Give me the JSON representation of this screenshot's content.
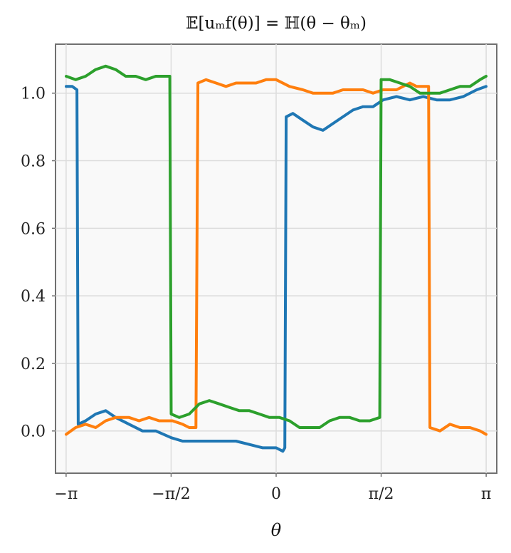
{
  "chart_data": {
    "type": "line",
    "title": "𝔼[uₘf(θ)] = ℍ(θ − θₘ)",
    "xlabel": "θ",
    "ylabel": "",
    "xlim": [
      -3.3,
      3.3
    ],
    "ylim": [
      -0.125,
      1.145
    ],
    "grid": true,
    "legend": "none",
    "x_ticks": [
      {
        "value": -3.14159,
        "label": "−π"
      },
      {
        "value": -1.5708,
        "label": "−π/2"
      },
      {
        "value": 0,
        "label": "0"
      },
      {
        "value": 1.5708,
        "label": "π/2"
      },
      {
        "value": 3.14159,
        "label": "π"
      }
    ],
    "y_ticks": [
      {
        "value": 0.0,
        "label": "0.0"
      },
      {
        "value": 0.2,
        "label": "0.2"
      },
      {
        "value": 0.4,
        "label": "0.4"
      },
      {
        "value": 0.6,
        "label": "0.6"
      },
      {
        "value": 0.8,
        "label": "0.8"
      },
      {
        "value": 1.0,
        "label": "1.0"
      }
    ],
    "series": [
      {
        "color": "#1f77b4",
        "points": [
          [
            -3.14,
            1.02
          ],
          [
            -3.05,
            1.02
          ],
          [
            -2.98,
            1.01
          ],
          [
            -2.96,
            0.02
          ],
          [
            -2.85,
            0.03
          ],
          [
            -2.7,
            0.05
          ],
          [
            -2.55,
            0.06
          ],
          [
            -2.4,
            0.04
          ],
          [
            -2.2,
            0.02
          ],
          [
            -2.0,
            0.0
          ],
          [
            -1.8,
            0.0
          ],
          [
            -1.57,
            -0.02
          ],
          [
            -1.4,
            -0.03
          ],
          [
            -1.2,
            -0.03
          ],
          [
            -1.0,
            -0.03
          ],
          [
            -0.8,
            -0.03
          ],
          [
            -0.6,
            -0.03
          ],
          [
            -0.4,
            -0.04
          ],
          [
            -0.2,
            -0.05
          ],
          [
            0.0,
            -0.05
          ],
          [
            0.1,
            -0.06
          ],
          [
            0.13,
            -0.05
          ],
          [
            0.15,
            0.93
          ],
          [
            0.25,
            0.94
          ],
          [
            0.4,
            0.92
          ],
          [
            0.55,
            0.9
          ],
          [
            0.7,
            0.89
          ],
          [
            0.85,
            0.91
          ],
          [
            1.0,
            0.93
          ],
          [
            1.15,
            0.95
          ],
          [
            1.3,
            0.96
          ],
          [
            1.45,
            0.96
          ],
          [
            1.6,
            0.98
          ],
          [
            1.8,
            0.99
          ],
          [
            2.0,
            0.98
          ],
          [
            2.2,
            0.99
          ],
          [
            2.4,
            0.98
          ],
          [
            2.6,
            0.98
          ],
          [
            2.8,
            0.99
          ],
          [
            3.0,
            1.01
          ],
          [
            3.14,
            1.02
          ]
        ]
      },
      {
        "color": "#ff7f0e",
        "points": [
          [
            -3.14,
            -0.01
          ],
          [
            -3.0,
            0.01
          ],
          [
            -2.85,
            0.02
          ],
          [
            -2.7,
            0.01
          ],
          [
            -2.55,
            0.03
          ],
          [
            -2.4,
            0.04
          ],
          [
            -2.2,
            0.04
          ],
          [
            -2.05,
            0.03
          ],
          [
            -1.9,
            0.04
          ],
          [
            -1.75,
            0.03
          ],
          [
            -1.55,
            0.03
          ],
          [
            -1.4,
            0.02
          ],
          [
            -1.3,
            0.01
          ],
          [
            -1.2,
            0.01
          ],
          [
            -1.17,
            1.03
          ],
          [
            -1.05,
            1.04
          ],
          [
            -0.9,
            1.03
          ],
          [
            -0.75,
            1.02
          ],
          [
            -0.6,
            1.03
          ],
          [
            -0.45,
            1.03
          ],
          [
            -0.3,
            1.03
          ],
          [
            -0.15,
            1.04
          ],
          [
            0.0,
            1.04
          ],
          [
            0.2,
            1.02
          ],
          [
            0.4,
            1.01
          ],
          [
            0.55,
            1.0
          ],
          [
            0.7,
            1.0
          ],
          [
            0.85,
            1.0
          ],
          [
            1.0,
            1.01
          ],
          [
            1.15,
            1.01
          ],
          [
            1.3,
            1.01
          ],
          [
            1.45,
            1.0
          ],
          [
            1.6,
            1.01
          ],
          [
            1.8,
            1.01
          ],
          [
            2.0,
            1.03
          ],
          [
            2.1,
            1.02
          ],
          [
            2.28,
            1.02
          ],
          [
            2.3,
            0.01
          ],
          [
            2.45,
            0.0
          ],
          [
            2.6,
            0.02
          ],
          [
            2.75,
            0.01
          ],
          [
            2.9,
            0.01
          ],
          [
            3.05,
            0.0
          ],
          [
            3.14,
            -0.01
          ]
        ]
      },
      {
        "color": "#2ca02c",
        "points": [
          [
            -3.14,
            1.05
          ],
          [
            -3.0,
            1.04
          ],
          [
            -2.85,
            1.05
          ],
          [
            -2.7,
            1.07
          ],
          [
            -2.55,
            1.08
          ],
          [
            -2.4,
            1.07
          ],
          [
            -2.25,
            1.05
          ],
          [
            -2.1,
            1.05
          ],
          [
            -1.95,
            1.04
          ],
          [
            -1.8,
            1.05
          ],
          [
            -1.65,
            1.05
          ],
          [
            -1.59,
            1.05
          ],
          [
            -1.57,
            0.05
          ],
          [
            -1.45,
            0.04
          ],
          [
            -1.3,
            0.05
          ],
          [
            -1.15,
            0.08
          ],
          [
            -1.0,
            0.09
          ],
          [
            -0.85,
            0.08
          ],
          [
            -0.7,
            0.07
          ],
          [
            -0.55,
            0.06
          ],
          [
            -0.4,
            0.06
          ],
          [
            -0.25,
            0.05
          ],
          [
            -0.1,
            0.04
          ],
          [
            0.05,
            0.04
          ],
          [
            0.2,
            0.03
          ],
          [
            0.35,
            0.01
          ],
          [
            0.5,
            0.01
          ],
          [
            0.65,
            0.01
          ],
          [
            0.8,
            0.03
          ],
          [
            0.95,
            0.04
          ],
          [
            1.1,
            0.04
          ],
          [
            1.25,
            0.03
          ],
          [
            1.4,
            0.03
          ],
          [
            1.55,
            0.04
          ],
          [
            1.57,
            1.04
          ],
          [
            1.7,
            1.04
          ],
          [
            1.85,
            1.03
          ],
          [
            2.0,
            1.02
          ],
          [
            2.15,
            1.0
          ],
          [
            2.3,
            1.0
          ],
          [
            2.45,
            1.0
          ],
          [
            2.6,
            1.01
          ],
          [
            2.75,
            1.02
          ],
          [
            2.9,
            1.02
          ],
          [
            3.05,
            1.04
          ],
          [
            3.14,
            1.05
          ]
        ]
      }
    ]
  }
}
